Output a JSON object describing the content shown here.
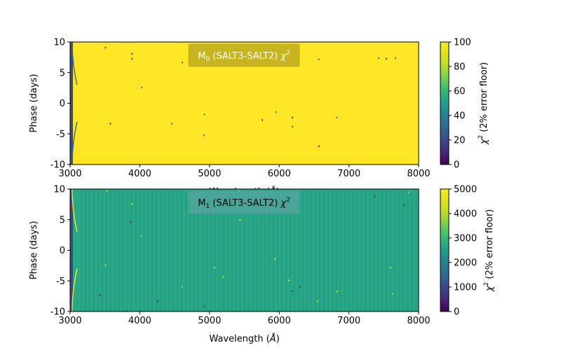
{
  "chart_data": [
    {
      "type": "heatmap",
      "title_main": "M",
      "title_sub": "0",
      "title_rest": " (SALT3-SALT2) ",
      "title_chi": "χ",
      "title_sup": "2",
      "xlabel": "Wavelength (Å)",
      "xlabel_main": "Wavelength (",
      "xlabel_unit": "Å",
      "xlabel_end": ")",
      "ylabel": "Phase (days)",
      "xlim": [
        3000,
        8000
      ],
      "ylim": [
        -10,
        10
      ],
      "xticks": [
        3000,
        4000,
        5000,
        6000,
        7000,
        8000
      ],
      "yticks": [
        -10,
        -5,
        0,
        5,
        10
      ],
      "colorbar": {
        "label_chi": "χ",
        "label_sup": "2",
        "label_rest": " (2% error floor)",
        "range": [
          0,
          100
        ],
        "ticks": [
          0,
          20,
          40,
          60,
          80,
          100
        ]
      },
      "colormap": "viridis",
      "background_value": 100,
      "title_box_color": "#c8b41e",
      "title_text_color": "#ffffff"
    },
    {
      "type": "heatmap",
      "title_main": "M",
      "title_sub": "1",
      "title_rest": " (SALT3-SALT2) ",
      "title_chi": "χ",
      "title_sup": "2",
      "xlabel": "Wavelength (Å)",
      "xlabel_main": "Wavelength (",
      "xlabel_unit": "Å",
      "xlabel_end": ")",
      "ylabel": "Phase (days)",
      "xlim": [
        3000,
        8000
      ],
      "ylim": [
        -10,
        10
      ],
      "xticks": [
        3000,
        4000,
        5000,
        6000,
        7000,
        8000
      ],
      "yticks": [
        -10,
        -5,
        0,
        5,
        10
      ],
      "colorbar": {
        "label_chi": "χ",
        "label_sup": "2",
        "label_rest": " (2% error floor)",
        "range": [
          0,
          5000
        ],
        "ticks": [
          0,
          1000,
          2000,
          3000,
          4000,
          5000
        ]
      },
      "colormap": "viridis",
      "background_value": 2700,
      "title_box_color": "#4fa69c",
      "title_text_color": "#000000"
    }
  ]
}
